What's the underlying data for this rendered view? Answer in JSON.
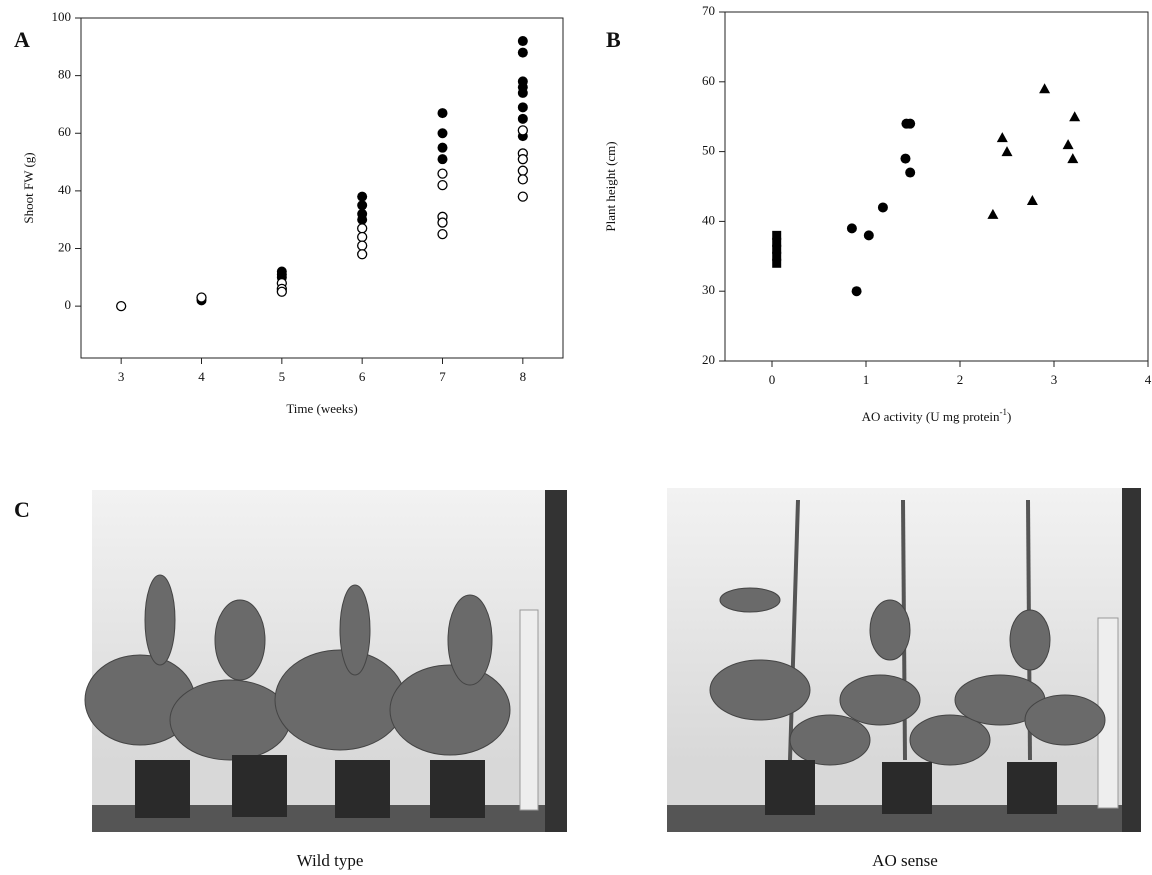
{
  "panel_labels": [
    "A",
    "B",
    "C"
  ],
  "photos": [
    {
      "caption": "Wild type"
    },
    {
      "caption": "AO sense"
    }
  ],
  "chart_data": [
    {
      "type": "scatter",
      "xlabel": [
        "Time (weeks)"
      ],
      "ylabel": "Shoot FW (g)",
      "xlim": [
        2.5,
        8.5
      ],
      "xticks": [
        3,
        4,
        5,
        6,
        7,
        8
      ],
      "ylim": [
        -18,
        100
      ],
      "yticks": [
        0,
        20,
        40,
        60,
        80,
        100
      ],
      "series": [
        {
          "color": "#000000",
          "marker": "circle",
          "x": [
            4,
            5,
            5,
            5,
            6,
            6,
            6,
            6,
            7,
            7,
            7,
            7,
            8,
            8,
            8,
            8,
            8,
            8,
            8,
            8
          ],
          "values": [
            2,
            12,
            11,
            10,
            38,
            35,
            32,
            30,
            67,
            60,
            55,
            51,
            92,
            88,
            78,
            76,
            74,
            69,
            65,
            59
          ]
        },
        {
          "color": "#000000",
          "marker": "circle-open",
          "x": [
            3,
            4,
            5,
            5,
            5,
            6,
            6,
            6,
            6,
            7,
            7,
            7,
            7,
            7,
            8,
            8,
            8,
            8,
            8,
            8
          ],
          "values": [
            0,
            3,
            8,
            6,
            5,
            27,
            24,
            21,
            18,
            46,
            42,
            31,
            29,
            25,
            61,
            53,
            51,
            47,
            44,
            38
          ]
        }
      ]
    },
    {
      "type": "scatter",
      "xlabel": [
        "AO activity (U mg protein",
        "-1",
        ")"
      ],
      "ylabel": "Plant height (cm)",
      "xlim": [
        -0.5,
        4
      ],
      "xticks": [
        0,
        1,
        2,
        3,
        4
      ],
      "ylim": [
        20,
        70
      ],
      "yticks": [
        20,
        30,
        40,
        50,
        60,
        70
      ],
      "series": [
        {
          "color": "#000000",
          "marker": "square",
          "x": [
            0.05,
            0.05,
            0.05,
            0.05,
            0.05
          ],
          "values": [
            38,
            37,
            36,
            35,
            34
          ]
        },
        {
          "color": "#000000",
          "marker": "circle",
          "x": [
            0.85,
            0.9,
            1.03,
            1.18,
            1.42,
            1.43,
            1.47,
            1.47
          ],
          "values": [
            39,
            30,
            38,
            42,
            49,
            54,
            54,
            47
          ]
        },
        {
          "color": "#000000",
          "marker": "triangle",
          "x": [
            2.35,
            2.45,
            2.5,
            2.77,
            2.9,
            3.15,
            3.2,
            3.22
          ],
          "values": [
            41,
            52,
            50,
            43,
            59,
            51,
            49,
            55
          ]
        }
      ]
    }
  ]
}
